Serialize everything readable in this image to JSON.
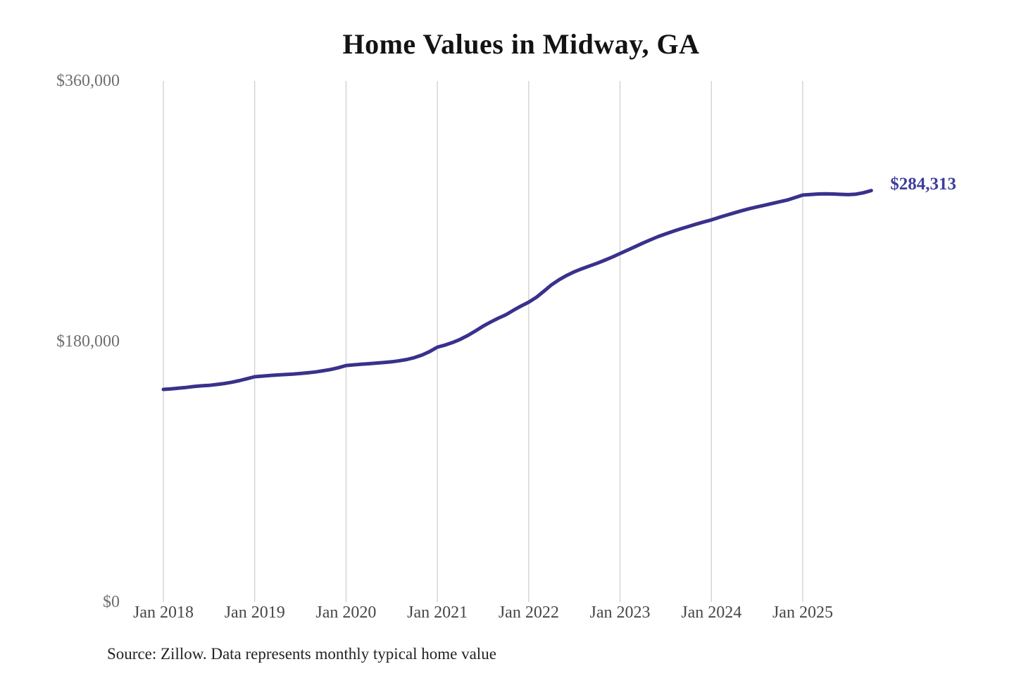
{
  "title": "Home Values in Midway, GA",
  "source_note": "Source: Zillow. Data represents monthly typical home value",
  "end_label": "$284,313",
  "colors": {
    "background": "#ffffff",
    "title": "#131313",
    "line": "#39318c",
    "end_label": "#3e3e9d",
    "gridline": "#cccccc",
    "y_tick": "#6e6e73",
    "x_tick": "#474747",
    "source": "#232323"
  },
  "chart_data": {
    "type": "line",
    "title": "Home Values in Midway, GA",
    "series_name": "Monthly typical home value",
    "x_monthly_from": "Jan 2018",
    "x_monthly_to": "Oct 2025",
    "x_tick_labels": [
      "Jan 2018",
      "Jan 2019",
      "Jan 2020",
      "Jan 2021",
      "Jan 2022",
      "Jan 2023",
      "Jan 2024",
      "Jan 2025"
    ],
    "y_tick_labels": [
      "$0",
      "$180,000",
      "$360,000"
    ],
    "y_tick_values": [
      0,
      180000,
      360000
    ],
    "ylim": [
      0,
      360000
    ],
    "grid": "vertical-only",
    "legend": "none",
    "final_value": 284313,
    "final_value_label": "$284,313",
    "values": [
      146900,
      147300,
      147800,
      148300,
      148900,
      149400,
      149700,
      150300,
      151000,
      151900,
      153000,
      154300,
      155700,
      156100,
      156500,
      156900,
      157200,
      157500,
      157900,
      158400,
      159000,
      159800,
      160700,
      161900,
      163400,
      163900,
      164300,
      164700,
      165100,
      165500,
      166000,
      166700,
      167600,
      168900,
      170700,
      173100,
      176100,
      177500,
      179300,
      181500,
      184200,
      187300,
      190600,
      193500,
      196100,
      198500,
      201600,
      204500,
      207200,
      210500,
      214800,
      219200,
      222700,
      225700,
      228200,
      230300,
      232200,
      234100,
      236200,
      238400,
      240800,
      243200,
      245600,
      248000,
      250300,
      252500,
      254400,
      256200,
      257900,
      259500,
      261100,
      262600,
      264000,
      265700,
      267300,
      268900,
      270400,
      271800,
      273000,
      274200,
      275400,
      276600,
      277800,
      279500,
      281200,
      281600,
      281900,
      282000,
      281900,
      281700,
      281500,
      281800,
      282800,
      284313
    ]
  }
}
